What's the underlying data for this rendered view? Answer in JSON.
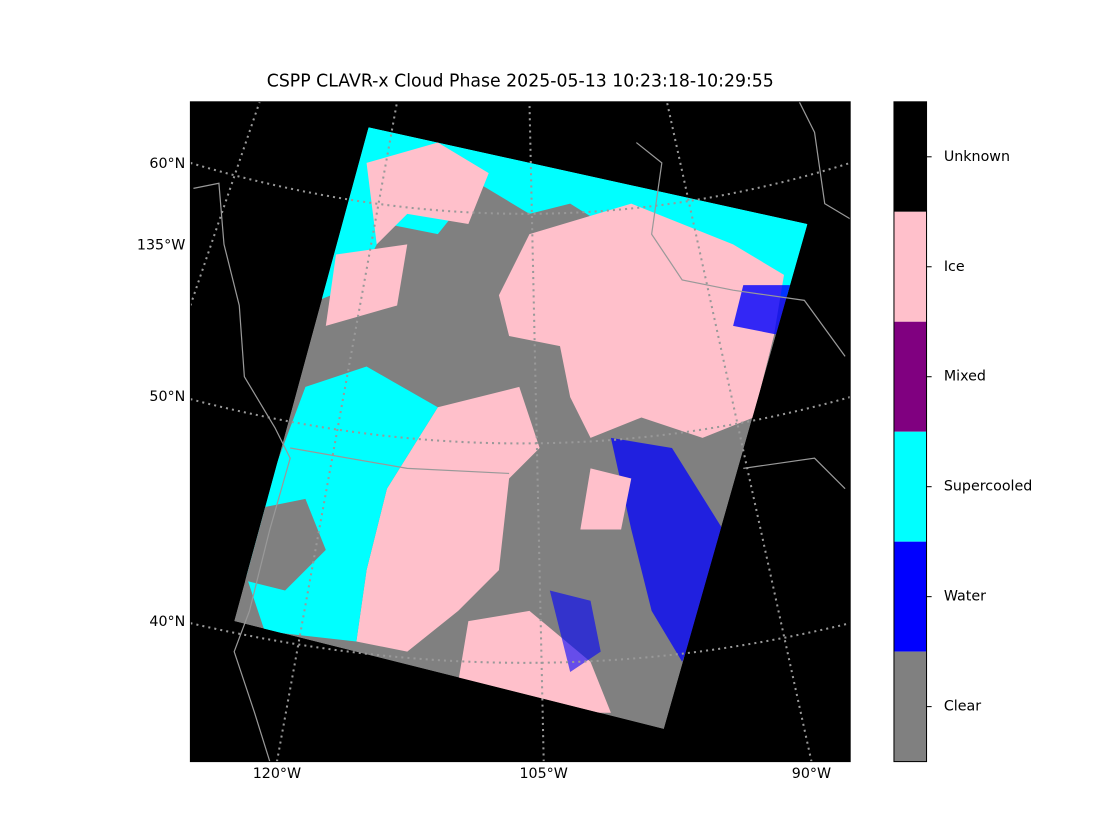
{
  "title": "CSPP CLAVR-x Cloud Phase 2025-05-13 10:23:18-10:29:55",
  "map": {
    "left_labels": [
      "60°N",
      "135°W",
      "50°N",
      "40°N"
    ],
    "bottom_labels": [
      "120°W",
      "105°W",
      "90°W"
    ]
  },
  "colorbar": {
    "classes": [
      {
        "name": "Unknown",
        "color": "#000000"
      },
      {
        "name": "Ice",
        "color": "#ffc0cb"
      },
      {
        "name": "Mixed",
        "color": "#800080"
      },
      {
        "name": "Supercooled",
        "color": "#00ffff"
      },
      {
        "name": "Water",
        "color": "#0000ff"
      },
      {
        "name": "Clear",
        "color": "#808080"
      }
    ]
  }
}
